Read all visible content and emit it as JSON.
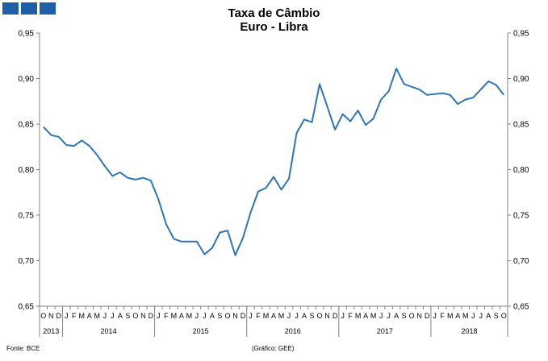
{
  "header": {
    "logo_icon": "gee-logo-icon",
    "title_line1": "Taxa de Câmbio",
    "title_line2": "Euro - Libra"
  },
  "footer": {
    "source": "Fonte: BCE",
    "credit": "(Gráfico:  GEE)"
  },
  "chart_data": {
    "type": "line",
    "title": "Taxa de Câmbio Euro - Libra",
    "ylim": [
      0.65,
      0.95
    ],
    "yticks": [
      "0,65",
      "0,70",
      "0,75",
      "0,80",
      "0,85",
      "0,90",
      "0,95"
    ],
    "yaxis_right": true,
    "grid": false,
    "line_color": "#2e75b6",
    "month_labels": [
      "O",
      "N",
      "D",
      "J",
      "F",
      "M",
      "A",
      "M",
      "J",
      "J",
      "A",
      "S",
      "O",
      "N",
      "D",
      "J",
      "F",
      "M",
      "A",
      "M",
      "J",
      "J",
      "A",
      "S",
      "O",
      "N",
      "D",
      "J",
      "F",
      "M",
      "A",
      "M",
      "J",
      "J",
      "A",
      "S",
      "O",
      "N",
      "D",
      "J",
      "F",
      "M",
      "A",
      "M",
      "J",
      "J",
      "A",
      "S",
      "O",
      "N",
      "D",
      "J",
      "F",
      "M",
      "A",
      "M",
      "J",
      "J",
      "A",
      "S",
      "O"
    ],
    "years": [
      {
        "label": "2013",
        "months": 3
      },
      {
        "label": "2014",
        "months": 12
      },
      {
        "label": "2015",
        "months": 12
      },
      {
        "label": "2016",
        "months": 12
      },
      {
        "label": "2017",
        "months": 12
      },
      {
        "label": "2018",
        "months": 10
      }
    ],
    "series": [
      {
        "values": [
          0.847,
          0.838,
          0.836,
          0.827,
          0.826,
          0.832,
          0.826,
          0.816,
          0.804,
          0.793,
          0.797,
          0.791,
          0.789,
          0.791,
          0.788,
          0.767,
          0.74,
          0.724,
          0.721,
          0.721,
          0.721,
          0.707,
          0.714,
          0.731,
          0.733,
          0.706,
          0.725,
          0.753,
          0.776,
          0.78,
          0.792,
          0.778,
          0.79,
          0.84,
          0.855,
          0.852,
          0.894,
          0.869,
          0.844,
          0.861,
          0.853,
          0.865,
          0.849,
          0.856,
          0.877,
          0.886,
          0.911,
          0.894,
          0.891,
          0.888,
          0.882,
          0.883,
          0.884,
          0.882,
          0.872,
          0.877,
          0.879,
          0.888,
          0.897,
          0.893,
          0.882
        ]
      }
    ]
  }
}
